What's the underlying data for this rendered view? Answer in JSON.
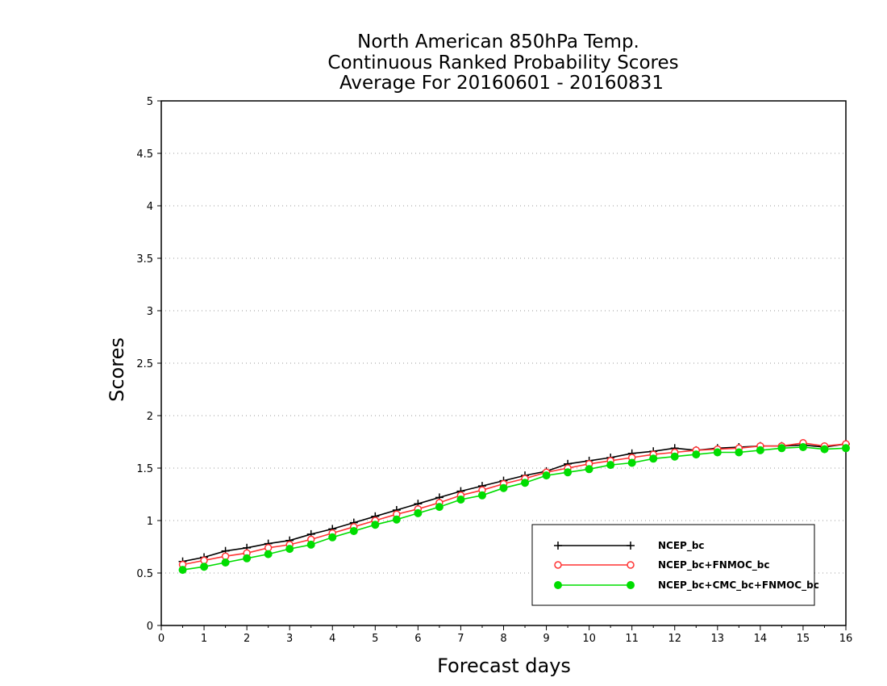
{
  "chart_data": {
    "type": "line",
    "title": [
      "North American 850hPa Temp.",
      "Continuous Ranked Probability Scores",
      "Average For 20160601 - 20160831"
    ],
    "xlabel": "Forecast days",
    "ylabel": "Scores",
    "xlim": [
      0,
      16
    ],
    "ylim": [
      0,
      5
    ],
    "xticks": [
      "0",
      "1",
      "2",
      "3",
      "4",
      "5",
      "6",
      "7",
      "8",
      "9",
      "10",
      "11",
      "12",
      "13",
      "14",
      "15",
      "16"
    ],
    "yticks": [
      "0",
      "0.5",
      "1",
      "1.5",
      "2",
      "2.5",
      "3",
      "3.5",
      "4",
      "4.5",
      "5"
    ],
    "grid": "horizontal-dotted",
    "legend_position": "lower-right",
    "x": [
      0.5,
      1,
      1.5,
      2,
      2.5,
      3,
      3.5,
      4,
      4.5,
      5,
      5.5,
      6,
      6.5,
      7,
      7.5,
      8,
      8.5,
      9,
      9.5,
      10,
      10.5,
      11,
      11.5,
      12,
      12.5,
      13,
      13.5,
      14,
      14.5,
      15,
      15.5,
      16
    ],
    "series": [
      {
        "name": "NCEP_bc",
        "color": "#000000",
        "marker": "plus",
        "values": [
          0.61,
          0.65,
          0.71,
          0.74,
          0.78,
          0.81,
          0.87,
          0.92,
          0.98,
          1.04,
          1.1,
          1.16,
          1.22,
          1.28,
          1.33,
          1.38,
          1.43,
          1.47,
          1.54,
          1.57,
          1.6,
          1.64,
          1.66,
          1.69,
          1.67,
          1.69,
          1.7,
          1.71,
          1.71,
          1.72,
          1.7,
          1.73
        ]
      },
      {
        "name": "NCEP_bc+FNMOC_bc",
        "color": "#ff3333",
        "marker": "open-circle",
        "values": [
          0.58,
          0.62,
          0.66,
          0.69,
          0.74,
          0.77,
          0.82,
          0.88,
          0.94,
          1.0,
          1.06,
          1.11,
          1.17,
          1.24,
          1.29,
          1.35,
          1.4,
          1.46,
          1.5,
          1.54,
          1.57,
          1.6,
          1.63,
          1.65,
          1.67,
          1.68,
          1.69,
          1.71,
          1.71,
          1.74,
          1.71,
          1.73
        ]
      },
      {
        "name": "NCEP_bc+CMC_bc+FNMOC_bc",
        "color": "#00dd00",
        "marker": "filled-circle",
        "values": [
          0.53,
          0.56,
          0.6,
          0.64,
          0.68,
          0.73,
          0.77,
          0.84,
          0.9,
          0.96,
          1.01,
          1.07,
          1.13,
          1.2,
          1.24,
          1.31,
          1.36,
          1.43,
          1.46,
          1.49,
          1.53,
          1.55,
          1.59,
          1.61,
          1.63,
          1.65,
          1.65,
          1.67,
          1.69,
          1.7,
          1.68,
          1.69
        ]
      }
    ]
  }
}
